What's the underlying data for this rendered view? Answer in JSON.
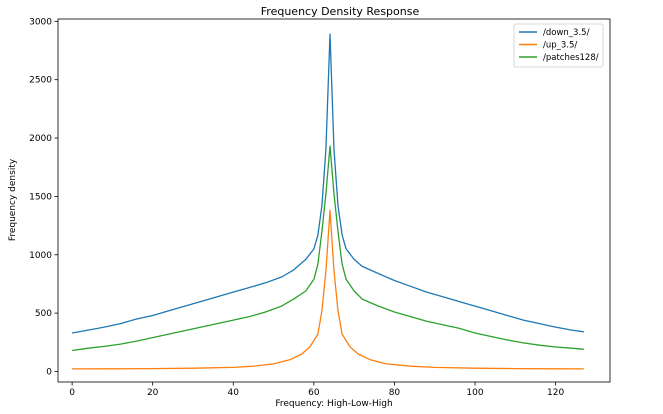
{
  "chart_data": {
    "type": "line",
    "title": "Frequency Density Response",
    "xlabel": "Frequency: High-Low-High",
    "ylabel": "Frequency density",
    "xlim": [
      -3.5,
      133.5
    ],
    "ylim": [
      -90,
      3020
    ],
    "xticks": [
      0,
      20,
      40,
      60,
      80,
      100,
      120
    ],
    "yticks": [
      0,
      500,
      1000,
      1500,
      2000,
      2500,
      3000
    ],
    "grid": false,
    "legend_position": "top-right",
    "series": [
      {
        "name": "/down_3.5/",
        "color": "#1f77b4",
        "x": [
          0,
          4,
          8,
          12,
          16,
          20,
          24,
          28,
          32,
          36,
          40,
          44,
          48,
          52,
          55,
          58,
          60,
          61,
          62,
          63,
          64,
          65,
          66,
          67,
          68,
          70,
          72,
          76,
          80,
          84,
          88,
          92,
          96,
          100,
          104,
          108,
          112,
          116,
          120,
          124,
          127
        ],
        "y": [
          330,
          355,
          380,
          410,
          450,
          480,
          520,
          560,
          600,
          640,
          680,
          720,
          760,
          810,
          870,
          960,
          1050,
          1170,
          1420,
          1900,
          2890,
          1900,
          1420,
          1170,
          1050,
          960,
          900,
          840,
          780,
          730,
          680,
          640,
          600,
          560,
          520,
          480,
          440,
          410,
          380,
          355,
          340
        ]
      },
      {
        "name": "/up_3.5/",
        "color": "#ff7f0e",
        "x": [
          0,
          10,
          20,
          30,
          40,
          45,
          50,
          54,
          57,
          59,
          61,
          62,
          63,
          64,
          65,
          66,
          67,
          69,
          71,
          74,
          78,
          84,
          90,
          100,
          110,
          120,
          127
        ],
        "y": [
          22,
          23,
          25,
          28,
          35,
          45,
          65,
          100,
          150,
          210,
          320,
          520,
          860,
          1380,
          860,
          520,
          320,
          210,
          150,
          100,
          65,
          45,
          35,
          28,
          25,
          23,
          22
        ]
      },
      {
        "name": "/patches128/",
        "color": "#2ca02c",
        "x": [
          0,
          4,
          8,
          12,
          16,
          20,
          24,
          28,
          32,
          36,
          40,
          44,
          48,
          52,
          55,
          58,
          60,
          61,
          62,
          63,
          64,
          65,
          66,
          67,
          68,
          70,
          72,
          76,
          80,
          84,
          88,
          92,
          96,
          100,
          104,
          108,
          112,
          116,
          120,
          124,
          127
        ],
        "y": [
          180,
          200,
          215,
          235,
          260,
          290,
          320,
          350,
          380,
          410,
          440,
          470,
          510,
          560,
          620,
          690,
          790,
          920,
          1200,
          1520,
          1930,
          1520,
          1200,
          920,
          790,
          690,
          620,
          560,
          510,
          470,
          430,
          400,
          370,
          330,
          300,
          270,
          245,
          225,
          210,
          200,
          190
        ]
      }
    ]
  }
}
